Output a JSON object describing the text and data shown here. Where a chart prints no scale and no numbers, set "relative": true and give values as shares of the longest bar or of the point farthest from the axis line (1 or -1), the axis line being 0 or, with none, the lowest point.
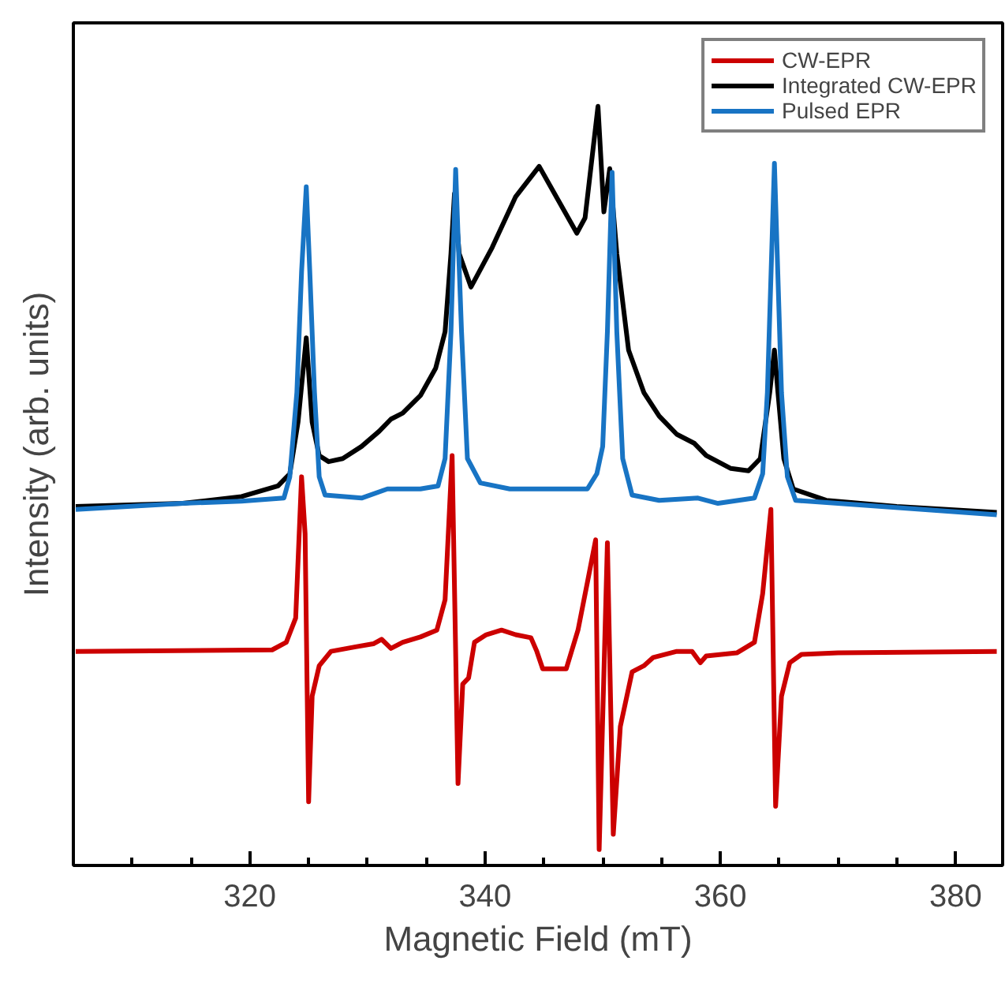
{
  "chart_data": {
    "type": "line",
    "xlabel": "Magnetic Field (mT)",
    "ylabel": "Intensity (arb. units)",
    "relative": true,
    "tick_labels": "x",
    "legend": "top right",
    "grid": false,
    "line_style": "solid",
    "marker": "none",
    "xlim": [
      305,
      384
    ],
    "xticks": [
      {
        "value": 310,
        "label": null
      },
      {
        "value": 315,
        "label": null
      },
      320,
      {
        "value": 325,
        "label": null
      },
      {
        "value": 330,
        "label": null
      },
      {
        "value": 335,
        "label": null
      },
      340,
      {
        "value": 345,
        "label": null
      },
      {
        "value": 350,
        "label": null
      },
      {
        "value": 355,
        "label": null
      },
      360,
      {
        "value": 365,
        "label": null
      },
      {
        "value": 370,
        "label": null
      },
      {
        "value": 375,
        "label": null
      },
      380
    ],
    "series": [
      {
        "name": "CW-EPR",
        "color": "#cc0000",
        "x": [
          305.2,
          321.9,
          323.1,
          323.9,
          324.4,
          324.7,
          325.0,
          325.3,
          325.9,
          326.9,
          329.0,
          330.5,
          331.2,
          332.0,
          333.0,
          334.5,
          335.9,
          336.6,
          337.2,
          337.7,
          338.1,
          338.6,
          339.1,
          340.1,
          341.4,
          342.6,
          343.9,
          344.4,
          344.9,
          346.9,
          347.9,
          348.7,
          349.4,
          349.7,
          350.4,
          350.9,
          351.5,
          352.5,
          353.5,
          354.3,
          356.3,
          357.6,
          358.3,
          358.8,
          361.4,
          362.9,
          363.6,
          364.3,
          364.7,
          365.2,
          365.9,
          366.9,
          370.0,
          383.5
        ],
        "values": [
          0.282,
          0.284,
          0.294,
          0.326,
          0.512,
          0.437,
          0.084,
          0.223,
          0.263,
          0.282,
          0.288,
          0.292,
          0.298,
          0.286,
          0.294,
          0.301,
          0.31,
          0.35,
          0.54,
          0.108,
          0.239,
          0.247,
          0.294,
          0.304,
          0.31,
          0.304,
          0.3,
          0.282,
          0.259,
          0.259,
          0.31,
          0.373,
          0.429,
          0.021,
          0.425,
          0.041,
          0.183,
          0.255,
          0.263,
          0.274,
          0.282,
          0.282,
          0.267,
          0.276,
          0.28,
          0.294,
          0.358,
          0.469,
          0.078,
          0.223,
          0.267,
          0.278,
          0.28,
          0.282
        ]
      },
      {
        "name": "Integrated CW-EPR",
        "color": "#000000",
        "x": [
          305.2,
          314.3,
          319.3,
          322.4,
          323.4,
          324.1,
          324.8,
          325.3,
          325.9,
          326.7,
          327.9,
          329.5,
          331.0,
          332.0,
          333.0,
          334.5,
          335.8,
          336.6,
          337.1,
          337.4,
          337.8,
          338.8,
          340.6,
          342.6,
          344.6,
          346.2,
          347.8,
          348.5,
          349.6,
          350.1,
          350.6,
          351.2,
          352.2,
          353.5,
          354.8,
          356.3,
          357.8,
          358.8,
          360.9,
          362.4,
          363.4,
          364.2,
          364.6,
          364.9,
          365.4,
          366.2,
          369.0,
          375.0,
          383.5
        ],
        "values": [
          0.473,
          0.477,
          0.486,
          0.5,
          0.516,
          0.584,
          0.695,
          0.584,
          0.54,
          0.532,
          0.536,
          0.552,
          0.572,
          0.588,
          0.596,
          0.619,
          0.655,
          0.703,
          0.806,
          0.885,
          0.806,
          0.762,
          0.814,
          0.881,
          0.921,
          0.877,
          0.833,
          0.853,
          1.0,
          0.861,
          0.918,
          0.806,
          0.679,
          0.623,
          0.592,
          0.568,
          0.556,
          0.54,
          0.523,
          0.52,
          0.536,
          0.623,
          0.679,
          0.623,
          0.536,
          0.496,
          0.481,
          0.473,
          0.465
        ]
      },
      {
        "name": "Pulsed EPR",
        "color": "#1874c4",
        "x": [
          305.2,
          314.3,
          319.3,
          322.9,
          323.4,
          324.0,
          324.4,
          324.8,
          325.1,
          325.5,
          325.9,
          326.4,
          329.5,
          331.7,
          334.5,
          336.0,
          336.6,
          337.1,
          337.5,
          338.0,
          338.5,
          339.6,
          342.1,
          344.6,
          348.7,
          349.5,
          350.0,
          350.4,
          350.8,
          351.2,
          351.7,
          352.5,
          354.8,
          358.1,
          359.8,
          362.9,
          363.6,
          364.0,
          364.6,
          365.2,
          365.7,
          366.4,
          370.0,
          383.5
        ],
        "values": [
          0.469,
          0.477,
          0.48,
          0.484,
          0.512,
          0.623,
          0.782,
          0.894,
          0.782,
          0.623,
          0.512,
          0.488,
          0.484,
          0.496,
          0.496,
          0.5,
          0.536,
          0.703,
          0.917,
          0.703,
          0.536,
          0.504,
          0.496,
          0.496,
          0.496,
          0.516,
          0.552,
          0.703,
          0.913,
          0.703,
          0.536,
          0.488,
          0.481,
          0.484,
          0.477,
          0.484,
          0.516,
          0.623,
          0.925,
          0.623,
          0.512,
          0.481,
          0.477,
          0.462
        ]
      }
    ]
  }
}
